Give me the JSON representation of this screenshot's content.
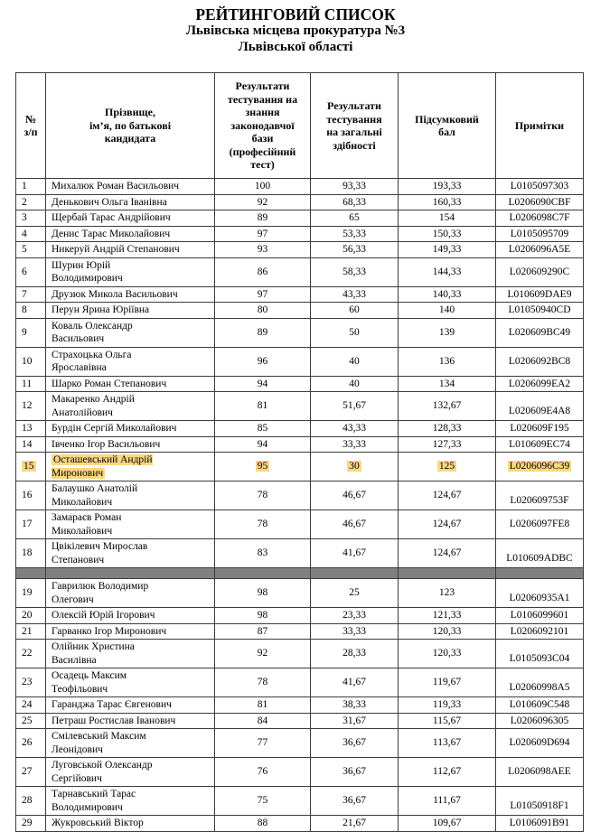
{
  "header": {
    "title": "РЕЙТИНГОВИЙ СПИСОК",
    "subtitle1": "Львівська місцева прокуратура №3",
    "subtitle2": "Львівської області"
  },
  "colors": {
    "highlight": "#FBD783",
    "divider_gray": "#808080"
  },
  "table": {
    "columns": [
      "№\nз/п",
      "Прізвище,\nім’я, по батькові\nкандидата",
      "Результати\nтестування на\nзнання\nзаконодавчої\nбази\n(професійний\nтест)",
      "Результати\nтестування\nна загальні\nздібності",
      "Підсумковий\nбал",
      "Примітки"
    ],
    "rows": [
      {
        "num": "1",
        "name": "Михалюк Роман Васильович",
        "prof": "100",
        "gen": "93,33",
        "total": "193,33",
        "note": "L0105097303"
      },
      {
        "num": "2",
        "name": "Денькович Ольга Іванівна",
        "prof": "92",
        "gen": "68,33",
        "total": "160,33",
        "note": "L0206090CBF"
      },
      {
        "num": "3",
        "name": "Щербай Тарас Андрійович",
        "prof": "89",
        "gen": "65",
        "total": "154",
        "note": "L0206098C7F"
      },
      {
        "num": "4",
        "name": "Денис Тарас Миколайович",
        "prof": "97",
        "gen": "53,33",
        "total": "150,33",
        "note": "L0105095709"
      },
      {
        "num": "5",
        "name": "Никеруй Андрій Степанович",
        "prof": "93",
        "gen": "56,33",
        "total": "149,33",
        "note": "L0206096A5E"
      },
      {
        "num": "6",
        "name": "Шурин Юрій\nВолодимирович",
        "prof": "86",
        "gen": "58,33",
        "total": "144,33",
        "note": "L020609290C"
      },
      {
        "num": "7",
        "name": "Друзюк Микола  Васильович",
        "prof": "97",
        "gen": "43,33",
        "total": "140,33",
        "note": "L010609DAE9"
      },
      {
        "num": "8",
        "name": "Перун Ярина Юріївна",
        "prof": "80",
        "gen": "60",
        "total": "140",
        "note": "L01050940CD"
      },
      {
        "num": "9",
        "name": "Коваль Олександр\nВасильович",
        "prof": "89",
        "gen": "50",
        "total": "139",
        "note": "L020609BC49"
      },
      {
        "num": "10",
        "name": "Страхоцька Ольга\nЯрославівна",
        "prof": "96",
        "gen": "40",
        "total": "136",
        "note": "L0206092BC8"
      },
      {
        "num": "11",
        "name": "Шарко Роман Степанович",
        "prof": "94",
        "gen": "40",
        "total": "134",
        "note": "L0206099EA2"
      },
      {
        "num": "12",
        "name": "Макаренко Андрій\nАнатолійович",
        "prof": "81",
        "gen": "51,67",
        "total": "132,67",
        "note": "L020609E4A8",
        "note_bottom": true
      },
      {
        "num": "13",
        "name": "Бурдін Сергій Миколайович",
        "prof": "85",
        "gen": "43,33",
        "total": "128,33",
        "note": "L020609F195"
      },
      {
        "num": "14",
        "name": "Івченко Ігор  Васильович",
        "prof": "94",
        "gen": "33,33",
        "total": "127,33",
        "note": "L010609EC74"
      },
      {
        "num": "15",
        "name": "Осташевський Андрій\nМиронович",
        "prof": "95",
        "gen": "30",
        "total": "125",
        "note": "L0206096C39",
        "highlight": true
      },
      {
        "num": "16",
        "name": "Балаушко Анатолій\nМиколайович",
        "prof": "78",
        "gen": "46,67",
        "total": "124,67",
        "note": "L020609753F",
        "note_bottom": true
      },
      {
        "num": "17",
        "name": "Замараєв Роман\nМиколайович",
        "prof": "78",
        "gen": "46,67",
        "total": "124,67",
        "note": "L0206097FE8"
      },
      {
        "num": "18",
        "name": "Цвікілевич Мирослав\nСтепанович",
        "prof": "83",
        "gen": "41,67",
        "total": "124,67",
        "note": "L010609ADBC",
        "note_bottom": true
      },
      {
        "type": "divider"
      },
      {
        "num": "19",
        "name": "Гаврилюк Володимир\nОлегович",
        "prof": "98",
        "gen": "25",
        "total": "123",
        "note": "L02060935A1",
        "note_bottom": true
      },
      {
        "num": "20",
        "name": "Олексій Юрій Ігорович",
        "prof": "98",
        "gen": "23,33",
        "total": "121,33",
        "note": "L0106099601"
      },
      {
        "num": "21",
        "name": "Гарванко Ігор Миронович",
        "prof": "87",
        "gen": "33,33",
        "total": "120,33",
        "note": "L0206092101"
      },
      {
        "num": "22",
        "name": "Олійник Христина\nВасилівна",
        "prof": "92",
        "gen": "28,33",
        "total": "120,33",
        "note": "L0105093C04",
        "note_bottom": true
      },
      {
        "num": "23",
        "name": "Осадець Максим\nТеофільович",
        "prof": "78",
        "gen": "41,67",
        "total": "119,67",
        "note": "L02060998A5",
        "note_bottom": true
      },
      {
        "num": "24",
        "name": "Гаранджа Тарас Євгенович",
        "prof": "81",
        "gen": "38,33",
        "total": "119,33",
        "note": "L010609C548"
      },
      {
        "num": "25",
        "name": "Петраш Ростислав Іванович",
        "prof": "84",
        "gen": "31,67",
        "total": "115,67",
        "note": "L0206096305"
      },
      {
        "num": "26",
        "name": "Смілевський Максим\nЛеонідович",
        "prof": "77",
        "gen": "36,67",
        "total": "113,67",
        "note": "L020609D694"
      },
      {
        "num": "27",
        "name": "Луговськой Олександр\nСергійович",
        "prof": "76",
        "gen": "36,67",
        "total": "112,67",
        "note": "L0206098AEE"
      },
      {
        "num": "28",
        "name": "Тарнавський  Тарас\nВолодимирович",
        "prof": "75",
        "gen": "36,67",
        "total": "111,67",
        "note": "L01050918F1",
        "note_bottom": true
      },
      {
        "num": "29",
        "name": "Жукровський Віктор",
        "prof": "88",
        "gen": "21,67",
        "total": "109,67",
        "note": "L0106091B91"
      }
    ]
  }
}
